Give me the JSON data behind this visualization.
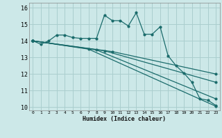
{
  "xlabel": "Humidex (Indice chaleur)",
  "bg_color": "#cce8e8",
  "grid_color": "#aacece",
  "line_color": "#1a6b6b",
  "xlim": [
    -0.5,
    23.5
  ],
  "ylim": [
    9.8,
    16.3
  ],
  "xticks": [
    0,
    1,
    2,
    3,
    4,
    5,
    6,
    7,
    8,
    9,
    10,
    11,
    12,
    13,
    14,
    15,
    16,
    17,
    18,
    19,
    20,
    21,
    22,
    23
  ],
  "yticks": [
    10,
    11,
    12,
    13,
    14,
    15,
    16
  ],
  "humidex_x": [
    0,
    1,
    2,
    3,
    4,
    5,
    6,
    7,
    8,
    9,
    10,
    11,
    12,
    13,
    14,
    15,
    16,
    17,
    18,
    19,
    20,
    21,
    22,
    23
  ],
  "humidex_y": [
    14.0,
    13.8,
    14.0,
    14.35,
    14.35,
    14.2,
    14.15,
    14.15,
    14.15,
    15.55,
    15.22,
    15.22,
    14.9,
    15.7,
    14.4,
    14.4,
    14.85,
    13.1,
    12.5,
    12.05,
    11.5,
    10.5,
    10.42,
    10.1
  ],
  "trend_lines": [
    {
      "x": [
        0,
        7,
        23
      ],
      "y": [
        14.0,
        13.5,
        10.05
      ]
    },
    {
      "x": [
        0,
        8,
        23
      ],
      "y": [
        14.0,
        13.45,
        10.5
      ]
    },
    {
      "x": [
        0,
        9,
        23
      ],
      "y": [
        14.0,
        13.4,
        11.5
      ]
    },
    {
      "x": [
        0,
        10,
        23
      ],
      "y": [
        14.0,
        13.35,
        12.0
      ]
    }
  ]
}
